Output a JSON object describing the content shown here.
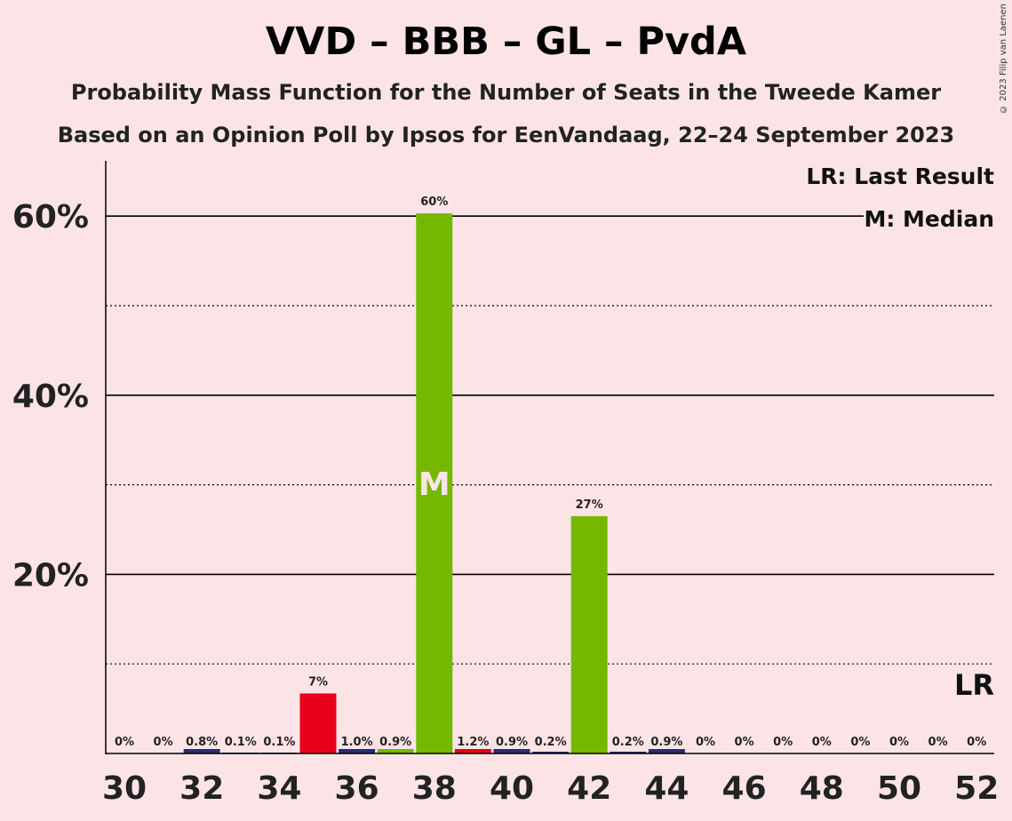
{
  "title": "VVD – BBB – GL – PvdA",
  "subtitle1": "Probability Mass Function for the Number of Seats in the Tweede Kamer",
  "subtitle2": "Based on an Opinion Poll by Ipsos for EenVandaag, 22–24 September 2023",
  "copyright": "© 2023 Filip van Laenen",
  "legend": {
    "last_result": "LR: Last Result",
    "median": "M: Median"
  },
  "markers": {
    "median_label": "M",
    "last_result_label": "LR"
  },
  "colors": {
    "background": "#fce4e6",
    "bar_navy": "#2a2d6e",
    "bar_red": "#e8001a",
    "bar_green": "#75b800"
  },
  "chart_data": {
    "type": "bar",
    "x": [
      30,
      31,
      32,
      33,
      34,
      35,
      36,
      37,
      38,
      39,
      40,
      41,
      42,
      43,
      44,
      45,
      46,
      47,
      48,
      49,
      50,
      51,
      52
    ],
    "values": [
      0,
      0,
      0.8,
      0.1,
      0.1,
      6.7,
      1.0,
      0.9,
      60.3,
      1.2,
      0.9,
      0.2,
      26.5,
      0.2,
      0.9,
      0,
      0,
      0,
      0,
      0,
      0,
      0,
      0
    ],
    "labels": [
      "0%",
      "0%",
      "0.8%",
      "0.1%",
      "0.1%",
      "7%",
      "1.0%",
      "0.9%",
      "60%",
      "1.2%",
      "0.9%",
      "0.2%",
      "27%",
      "0.2%",
      "0.9%",
      "0%",
      "0%",
      "0%",
      "0%",
      "0%",
      "0%",
      "0%",
      "0%"
    ],
    "bar_colors": [
      "navy",
      "navy",
      "navy",
      "navy",
      "navy",
      "red",
      "navy",
      "green",
      "green",
      "red",
      "navy",
      "navy",
      "green",
      "navy",
      "navy",
      "navy",
      "navy",
      "navy",
      "navy",
      "navy",
      "navy",
      "navy",
      "navy"
    ],
    "x_tick_labels": [
      "30",
      "32",
      "34",
      "36",
      "38",
      "40",
      "42",
      "44",
      "46",
      "48",
      "50",
      "52"
    ],
    "y_tick_labels": [
      "20%",
      "40%",
      "60%"
    ],
    "y_ticks": [
      20,
      40,
      60
    ],
    "y_minor_ticks": [
      10,
      30,
      50
    ],
    "ylim": [
      0,
      66
    ],
    "median": 38,
    "last_result": 52
  }
}
